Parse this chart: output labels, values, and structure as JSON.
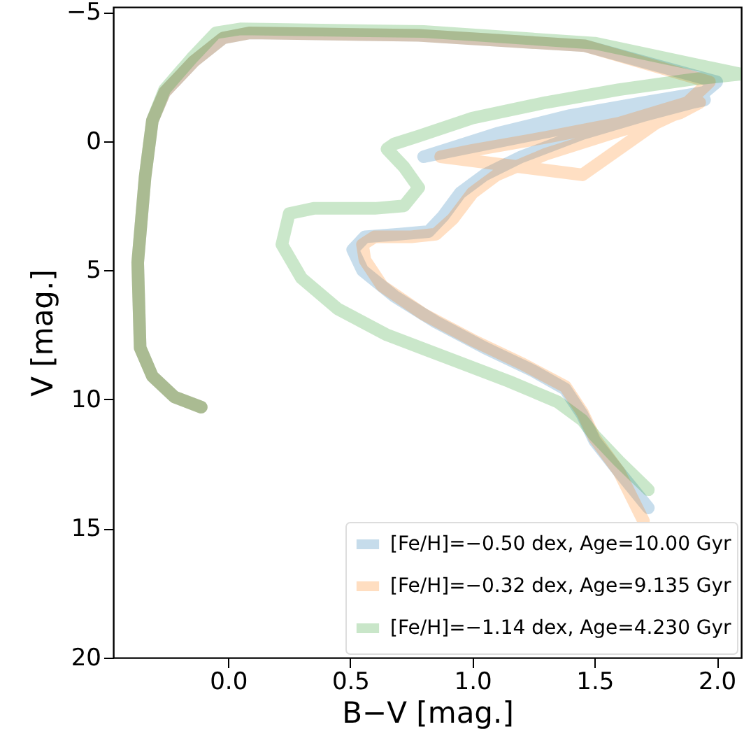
{
  "chart_data": {
    "type": "line",
    "xlabel": "B−V [mag.]",
    "ylabel": "V [mag.]",
    "xlim": [
      -0.47,
      2.1
    ],
    "ylim": [
      20,
      -5.2
    ],
    "xticks": [
      {
        "value": 0,
        "label": "0.0"
      },
      {
        "value": 0.5,
        "label": "0.5"
      },
      {
        "value": 1,
        "label": "1.0"
      },
      {
        "value": 1.5,
        "label": "1.5"
      },
      {
        "value": 2,
        "label": "2.0"
      }
    ],
    "yticks": [
      -5,
      0,
      5,
      10,
      15,
      20
    ],
    "grid": false,
    "legend": "bottom right",
    "line_style": "solid",
    "marker": "none",
    "series": [
      {
        "name": "[Fe/H]=−0.50 dex, Age=10.00 Gyr",
        "color": "#1f77b4",
        "x": [
          1.72,
          1.6,
          1.5,
          1.45,
          1.38,
          1.25,
          1.05,
          0.85,
          0.68,
          0.55,
          0.51,
          0.56,
          0.7,
          0.82,
          0.88,
          0.95,
          1.05,
          1.2,
          1.45,
          1.7,
          1.9,
          1.95,
          0.8,
          0.9,
          1.1,
          1.4,
          1.7,
          1.95,
          2.0,
          1.46,
          0.78,
          0.09,
          -0.02,
          -0.14,
          -0.26,
          -0.31,
          -0.34,
          -0.37,
          -0.36,
          -0.31,
          -0.22,
          -0.11
        ],
        "values": [
          14.2,
          12.8,
          11.6,
          10.6,
          9.6,
          8.9,
          8.0,
          7.0,
          6.0,
          5.0,
          4.2,
          3.7,
          3.6,
          3.5,
          2.9,
          2.0,
          1.3,
          0.6,
          -0.3,
          -1.0,
          -1.5,
          -1.6,
          0.6,
          0.3,
          -0.3,
          -1.0,
          -1.5,
          -1.9,
          -2.3,
          -3.7,
          -4.1,
          -4.2,
          -4.0,
          -3.1,
          -1.9,
          -0.8,
          1.4,
          4.7,
          8.0,
          9.1,
          9.9,
          10.3
        ]
      },
      {
        "name": "[Fe/H]=−0.32 dex, Age=9.135 Gyr",
        "color": "#ff7f0e",
        "x": [
          1.7,
          1.6,
          1.5,
          1.45,
          1.38,
          1.2,
          1.0,
          0.8,
          0.63,
          0.56,
          0.55,
          0.6,
          0.75,
          0.85,
          0.92,
          1.0,
          1.1,
          1.3,
          1.6,
          1.85,
          1.93,
          1.75,
          1.45,
          0.87,
          1.0,
          1.3,
          1.6,
          1.88,
          1.97,
          1.46,
          0.78,
          0.09,
          -0.02,
          -0.14,
          -0.26,
          -0.31,
          -0.34,
          -0.37,
          -0.36,
          -0.31,
          -0.22,
          -0.11
        ],
        "values": [
          14.7,
          12.8,
          11.5,
          10.5,
          9.5,
          8.6,
          7.7,
          6.7,
          5.6,
          4.6,
          4.0,
          3.7,
          3.7,
          3.6,
          3.0,
          2.0,
          1.3,
          0.5,
          -0.4,
          -1.1,
          -1.5,
          -0.7,
          1.3,
          0.6,
          0.35,
          -0.15,
          -0.7,
          -1.5,
          -2.3,
          -3.7,
          -4.1,
          -4.2,
          -4.0,
          -3.1,
          -1.9,
          -0.8,
          1.4,
          4.7,
          8.0,
          9.1,
          9.9,
          10.3
        ]
      },
      {
        "name": "[Fe/H]=−1.14 dex, Age=4.230 Gyr",
        "color": "#2ca02c",
        "x": [
          1.72,
          1.6,
          1.5,
          1.45,
          1.35,
          1.15,
          0.9,
          0.65,
          0.45,
          0.3,
          0.22,
          0.25,
          0.35,
          0.6,
          0.72,
          0.78,
          0.72,
          0.65,
          0.68,
          0.78,
          1.0,
          1.3,
          1.6,
          1.9,
          2.1,
          1.5,
          0.8,
          0.05,
          -0.05,
          -0.15,
          -0.26,
          -0.31,
          -0.34,
          -0.37,
          -0.36,
          -0.31,
          -0.22,
          -0.11
        ],
        "values": [
          13.5,
          12.4,
          11.4,
          10.8,
          10.1,
          9.3,
          8.4,
          7.5,
          6.5,
          5.3,
          4.0,
          2.8,
          2.6,
          2.6,
          2.5,
          1.8,
          1.0,
          0.3,
          0.1,
          -0.2,
          -0.9,
          -1.5,
          -2.0,
          -2.4,
          -2.6,
          -3.8,
          -4.25,
          -4.35,
          -4.2,
          -3.2,
          -2.0,
          -0.8,
          1.4,
          4.7,
          8.0,
          9.1,
          9.9,
          10.3
        ]
      }
    ]
  }
}
